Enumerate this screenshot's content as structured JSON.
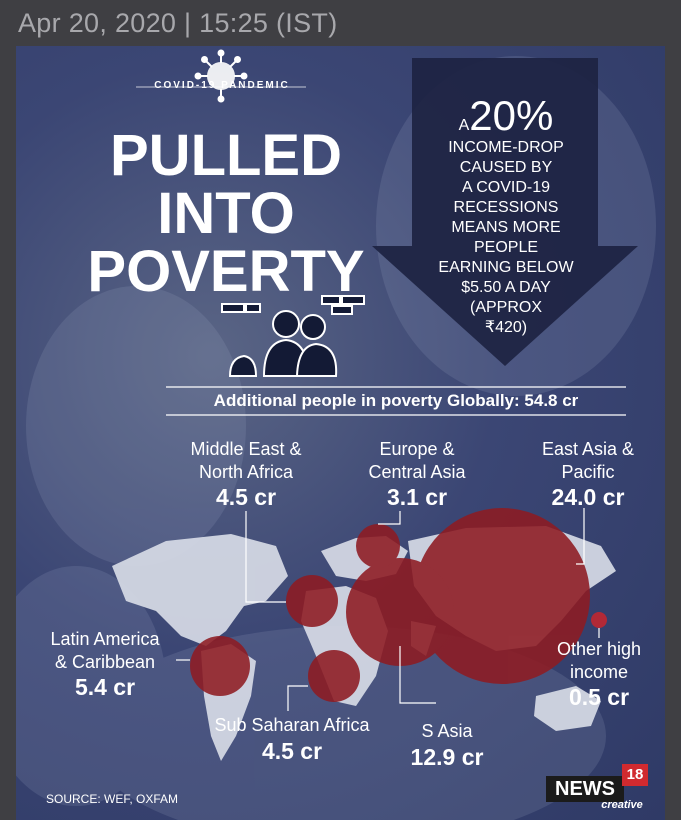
{
  "header": {
    "date": "Apr 20, 2020 | 15:25 (IST)"
  },
  "poster": {
    "badge": "COVID-19 PANDEMIC",
    "title_lines": [
      "PULLED",
      "INTO",
      "POVERTY"
    ],
    "arrow_small": "A",
    "arrow_pct": "20%",
    "arrow_lines": [
      "INCOME-DROP",
      "CAUSED BY",
      "A COVID-19",
      "RECESSIONS",
      "MEANS MORE",
      "PEOPLE",
      "EARNING BELOW",
      "$5.50 A DAY",
      "(APPROX",
      "₹420)"
    ],
    "global": "Additional people in poverty Globally: 54.8 cr",
    "regions": {
      "mena": {
        "label1": "Middle East &",
        "label2": "North Africa",
        "value": "4.5 cr"
      },
      "eca": {
        "label1": "Europe &",
        "label2": "Central Asia",
        "value": "3.1 cr"
      },
      "eap": {
        "label1": "East Asia &",
        "label2": "Pacific",
        "value": "24.0 cr"
      },
      "lac": {
        "label1": "Latin America",
        "label2": "& Caribbean",
        "value": "5.4 cr"
      },
      "other": {
        "label1": "Other high",
        "label2": "income",
        "value": "0.5 cr"
      },
      "ssa": {
        "label1": "Sub Saharan Africa",
        "value": "4.5 cr"
      },
      "sa": {
        "label1": "S Asia",
        "value": "12.9 cr"
      }
    },
    "source": "SOURCE: WEF, OXFAM",
    "logo": {
      "word": "NEWS",
      "num": "18",
      "sub": "creative"
    }
  },
  "colors": {
    "bubble": "#8e1b22",
    "bg": "#3b4674",
    "text": "#ffffff"
  }
}
